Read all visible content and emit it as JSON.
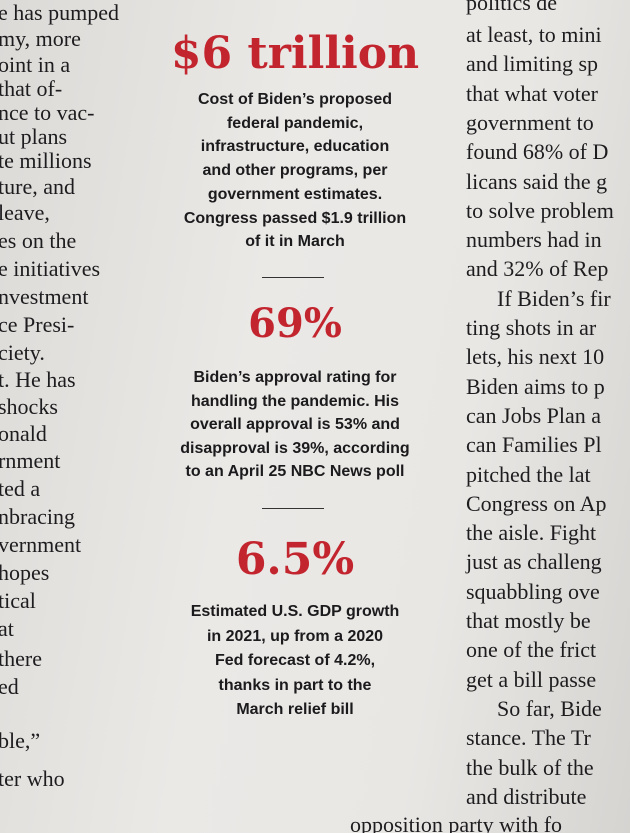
{
  "left_column": {
    "lines": [
      "e has pumped",
      "my, more",
      "oint in a",
      "that of-",
      "nce to vac-",
      "ut plans",
      "te millions",
      "ture, and",
      " leave,",
      "es on the",
      "e initiatives",
      "nvestment",
      "ce Presi-",
      "ciety.",
      "t. He has",
      " shocks",
      "onald",
      "rnment",
      "ted a",
      "nbracing",
      "vernment",
      " hopes",
      "tical",
      "at",
      "there",
      "ed",
      "ble,”",
      "ter who"
    ]
  },
  "right_column": {
    "lines": [
      "politics de",
      "at least, to mini",
      "and limiting sp",
      "that what voter",
      "government to",
      "found 68% of D",
      "licans said the g",
      "to solve problem",
      "numbers had in",
      "and 32% of Rep",
      "If Biden’s fir",
      "ting shots in ar",
      "lets, his next 10",
      "Biden aims to p",
      "can Jobs Plan a",
      "can Families Pl",
      "pitched the lat",
      "Congress on Ap",
      "the aisle. Fight",
      "just as challeng",
      "squabbling ove",
      "that mostly be",
      "one of the frict",
      "get a bill passe",
      "So far, Bide",
      "stance. The Tr",
      "the bulk of the",
      "and distribute"
    ]
  },
  "footer_line": "opposition party with fo",
  "stats": [
    {
      "figure": "$6 trillion",
      "description": [
        "Cost of Biden’s proposed",
        "federal pandemic,",
        "infrastructure, education",
        "and other programs, per",
        "government estimates.",
        "Congress passed $1.9 trillion",
        "of it in March"
      ]
    },
    {
      "figure": "69%",
      "description": [
        "Biden’s approval rating for",
        "handling the pandemic. His",
        "overall approval is 53% and",
        "disapproval is 39%, according",
        "to an April 25 NBC News poll"
      ]
    },
    {
      "figure": "6.5%",
      "description": [
        "Estimated U.S. GDP growth",
        "in 2021, up from a 2020",
        "Fed forecast of 4.2%,",
        "thanks in part to the",
        "March relief bill"
      ]
    }
  ]
}
